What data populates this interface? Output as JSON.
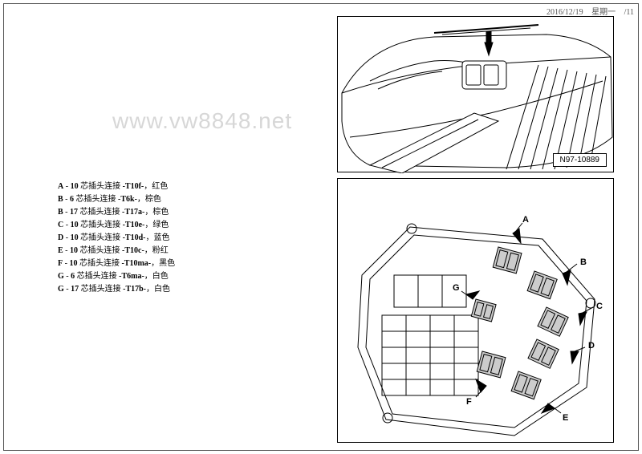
{
  "header": {
    "date": "2016/12/19",
    "weekday": "星期一",
    "page": "/11"
  },
  "watermark": "www.vw8848.net",
  "legend": {
    "entries": [
      {
        "key": "A",
        "pins": "10",
        "word": "芯插头连接",
        "code": "-T10f-",
        "color": "红色"
      },
      {
        "key": "B",
        "pins": "6",
        "word": "芯插头连接",
        "code": "-T6k-",
        "color": "棕色"
      },
      {
        "key": "B",
        "pins": "17",
        "word": "芯插头连接",
        "code": "-T17a-",
        "color": "棕色"
      },
      {
        "key": "C",
        "pins": "10",
        "word": "芯插头连接",
        "code": "-T10e-",
        "color": "绿色"
      },
      {
        "key": "D",
        "pins": "10",
        "word": "芯插头连接",
        "code": "-T10d-",
        "color": "蓝色"
      },
      {
        "key": "E",
        "pins": "10",
        "word": "芯插头连接",
        "code": "-T10c-",
        "color": "粉红"
      },
      {
        "key": "F",
        "pins": "10",
        "word": "芯插头连接",
        "code": "-T10ma-",
        "color": "黑色"
      },
      {
        "key": "G",
        "pins": "6",
        "word": "芯插头连接",
        "code": "-T6ma-",
        "color": "白色"
      },
      {
        "key": "G",
        "pins": "17",
        "word": "芯插头连接",
        "code": "-T17b-",
        "color": "白色"
      }
    ],
    "sep_dash": " - ",
    "sep_comma": "，"
  },
  "figTop": {
    "label": "N97-10889"
  },
  "figBottom": {
    "callouts": [
      "A",
      "B",
      "C",
      "D",
      "E",
      "F",
      "G"
    ]
  }
}
